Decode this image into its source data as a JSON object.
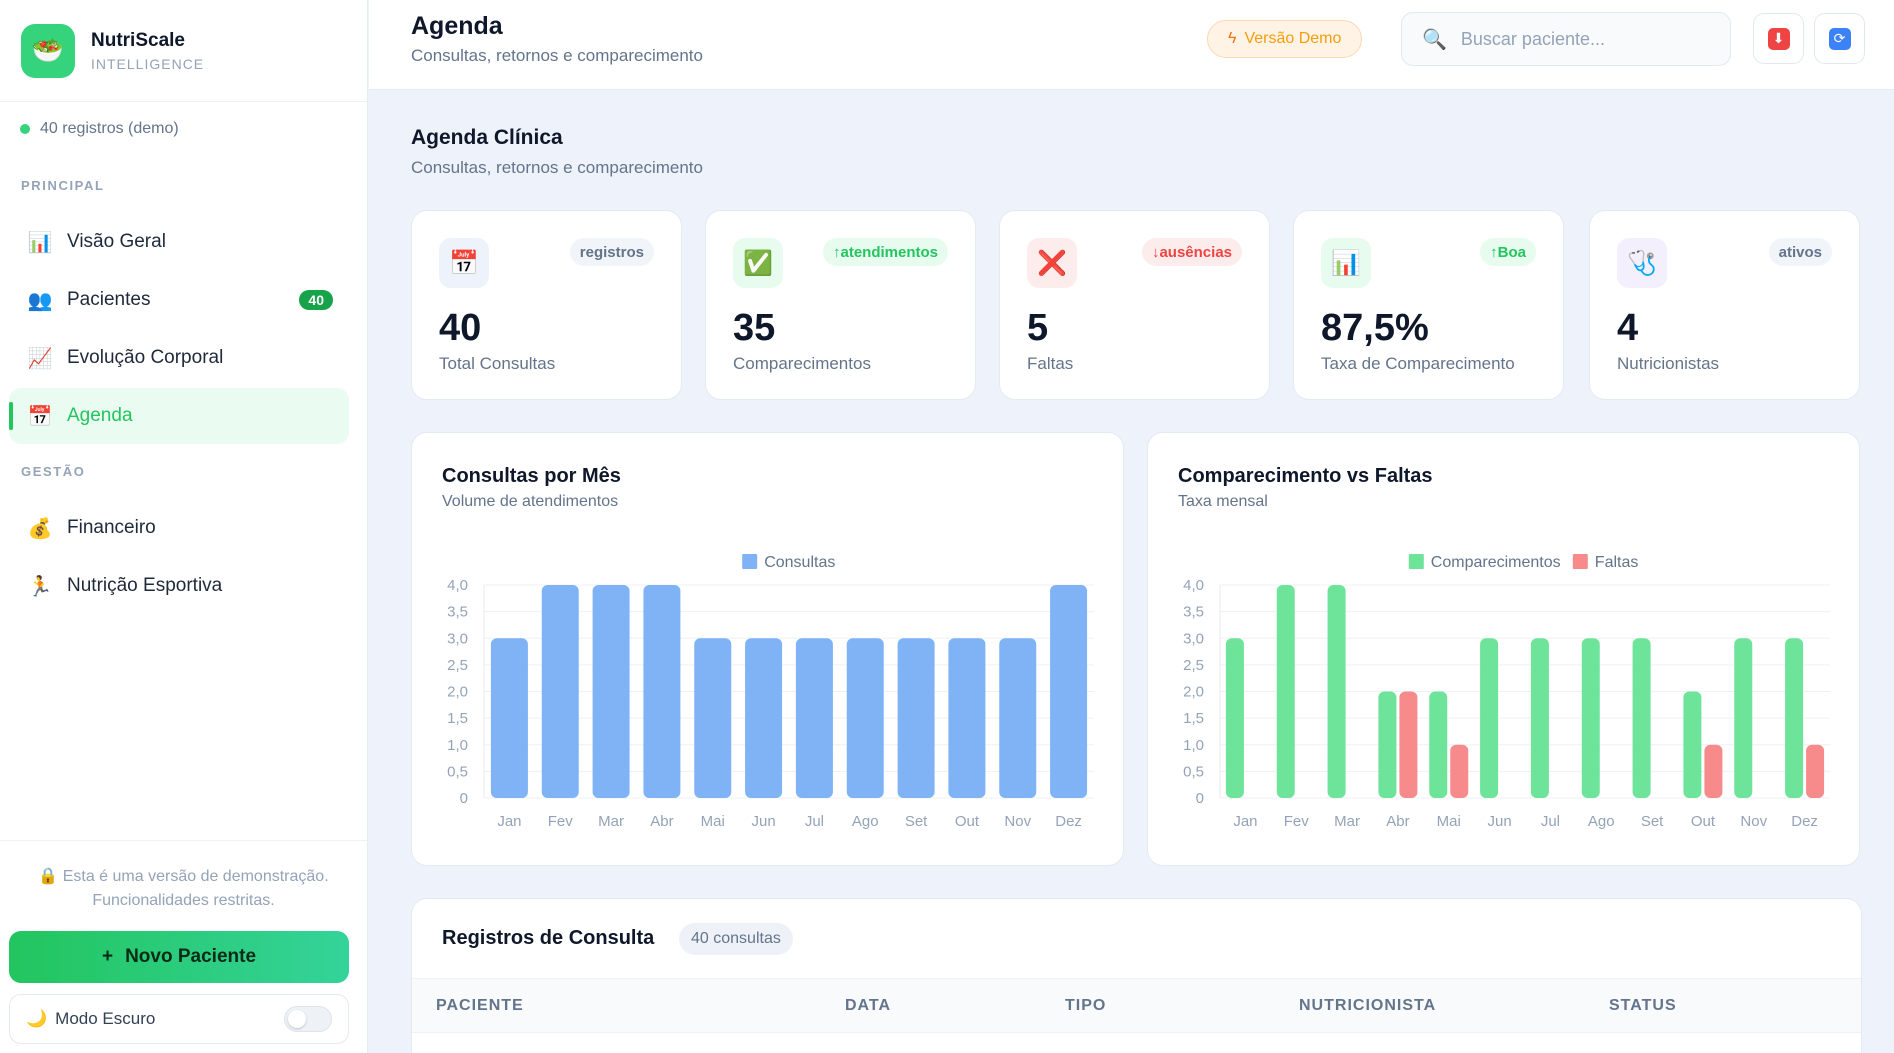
{
  "brand": {
    "name": "NutriScale",
    "sub": "INTELLIGENCE",
    "logo_icon": "salad-bowl-icon"
  },
  "records_label": "40 registros (demo)",
  "nav": {
    "section_main": "PRINCIPAL",
    "section_mgmt": "GESTÃO",
    "items": [
      {
        "label": "Visão Geral",
        "icon": "📊"
      },
      {
        "label": "Pacientes",
        "icon": "👥",
        "badge": "40"
      },
      {
        "label": "Evolução Corporal",
        "icon": "📈"
      },
      {
        "label": "Agenda",
        "icon": "📅"
      },
      {
        "label": "Financeiro",
        "icon": "💰"
      },
      {
        "label": "Nutrição Esportiva",
        "icon": "🏃"
      }
    ]
  },
  "demo_note": {
    "line1": "Esta é uma versão de demonstração.",
    "line2": "Funcionalidades restritas.",
    "lock": "🔒"
  },
  "new_patient_label": "Novo Paciente",
  "dark_mode_label": "Modo Escuro",
  "header": {
    "title": "Agenda",
    "subtitle": "Consultas, retornos e comparecimento",
    "demo_badge": "Versão Demo",
    "search_placeholder": "Buscar paciente..."
  },
  "page": {
    "title": "Agenda Clínica",
    "subtitle": "Consultas, retornos e comparecimento"
  },
  "stats": [
    {
      "value": "40",
      "label": "Total Consultas",
      "badge": "registros",
      "icon": "📅",
      "badge_color": "#64748b",
      "badge_bg": "#f1f5f9",
      "icon_bg": "#eef2fb"
    },
    {
      "value": "35",
      "label": "Comparecimentos",
      "badge": "↑atendimentos",
      "icon": "✅",
      "badge_color": "#22c55e",
      "badge_bg": "#e8fbef",
      "icon_bg": "#e8fbef"
    },
    {
      "value": "5",
      "label": "Faltas",
      "badge": "↓ausências",
      "icon": "❌",
      "badge_color": "#ef4444",
      "badge_bg": "#fdecec",
      "icon_bg": "#fdecec"
    },
    {
      "value": "87,5%",
      "label": "Taxa de Comparecimento",
      "badge": "↑Boa",
      "icon": "📊",
      "badge_color": "#22c55e",
      "badge_bg": "#e8fbef",
      "icon_bg": "#e8fbef"
    },
    {
      "value": "4",
      "label": "Nutricionistas",
      "badge": "ativos",
      "icon": "🩺",
      "badge_color": "#64748b",
      "badge_bg": "#f1f5f9",
      "icon_bg": "#f3effc"
    }
  ],
  "chart_data": [
    {
      "type": "bar",
      "title": "Consultas por Mês",
      "subtitle": "Volume de atendimentos",
      "categories": [
        "Jan",
        "Fev",
        "Mar",
        "Abr",
        "Mai",
        "Jun",
        "Jul",
        "Ago",
        "Set",
        "Out",
        "Nov",
        "Dez"
      ],
      "series": [
        {
          "name": "Consultas",
          "color": "#7fb3f5",
          "values": [
            3,
            4,
            4,
            4,
            3,
            3,
            3,
            3,
            3,
            3,
            3,
            4
          ]
        }
      ],
      "ylim": [
        0,
        4
      ],
      "yticks": [
        "0",
        "0,5",
        "1,0",
        "1,5",
        "2,0",
        "2,5",
        "3,0",
        "3,5",
        "4,0"
      ],
      "legend": "top",
      "grid": true
    },
    {
      "type": "bar",
      "title": "Comparecimento vs Faltas",
      "subtitle": "Taxa mensal",
      "categories": [
        "Jan",
        "Fev",
        "Mar",
        "Abr",
        "Mai",
        "Jun",
        "Jul",
        "Ago",
        "Set",
        "Out",
        "Nov",
        "Dez"
      ],
      "series": [
        {
          "name": "Comparecimentos",
          "color": "#6ee39a",
          "values": [
            3,
            4,
            4,
            2,
            2,
            3,
            3,
            3,
            3,
            2,
            3,
            3
          ]
        },
        {
          "name": "Faltas",
          "color": "#f78b8b",
          "values": [
            0,
            0,
            0,
            2,
            1,
            0,
            0,
            0,
            0,
            1,
            0,
            1
          ]
        }
      ],
      "ylim": [
        0,
        4
      ],
      "yticks": [
        "0",
        "0,5",
        "1,0",
        "1,5",
        "2,0",
        "2,5",
        "3,0",
        "3,5",
        "4,0"
      ],
      "legend": "top",
      "grid": true
    }
  ],
  "table": {
    "title": "Registros de Consulta",
    "count": "40 consultas",
    "columns": [
      "PACIENTE",
      "DATA",
      "TIPO",
      "NUTRICIONISTA",
      "STATUS"
    ]
  }
}
